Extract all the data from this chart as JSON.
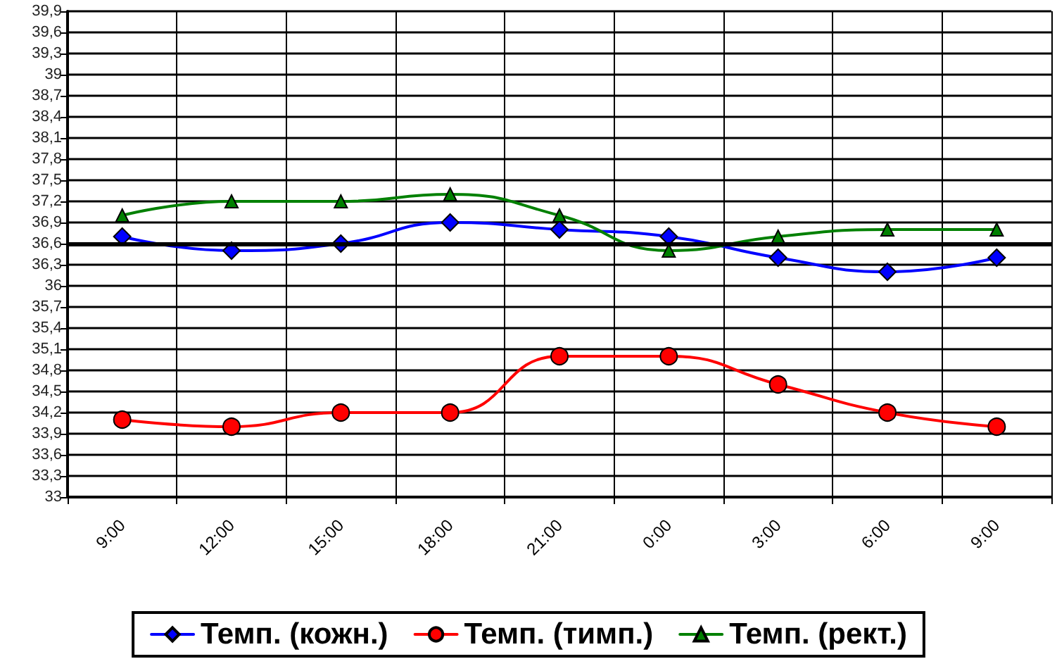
{
  "chart_data": {
    "type": "line",
    "categories": [
      "9:00",
      "12:00",
      "15:00",
      "18:00",
      "21:00",
      "0:00",
      "3:00",
      "6:00",
      "9:00"
    ],
    "series": [
      {
        "name": "Темп. (кожн.)",
        "color": "#0000ff",
        "marker": "diamond",
        "values": [
          36.7,
          36.5,
          36.6,
          36.9,
          36.8,
          36.7,
          36.4,
          36.2,
          36.4
        ]
      },
      {
        "name": "Темп. (тимп.)",
        "color": "#ff0000",
        "marker": "circle",
        "values": [
          34.1,
          34.0,
          34.2,
          34.2,
          35.0,
          35.0,
          34.6,
          34.2,
          34.0
        ]
      },
      {
        "name": "Темп. (рект.)",
        "color": "#008000",
        "marker": "triangle",
        "values": [
          37.0,
          37.2,
          37.2,
          37.3,
          37.0,
          36.5,
          36.7,
          36.8,
          36.8
        ]
      }
    ],
    "ylim": [
      33,
      39.9
    ],
    "yticks": [
      {
        "value": 33,
        "label": "33"
      },
      {
        "value": 33.3,
        "label": "33,3"
      },
      {
        "value": 33.6,
        "label": "33,6"
      },
      {
        "value": 33.9,
        "label": "33,9"
      },
      {
        "value": 34.2,
        "label": "34,2"
      },
      {
        "value": 34.5,
        "label": "34,5"
      },
      {
        "value": 34.8,
        "label": "34,8"
      },
      {
        "value": 35.1,
        "label": "35,1"
      },
      {
        "value": 35.4,
        "label": "35,4"
      },
      {
        "value": 35.7,
        "label": "35,7"
      },
      {
        "value": 36,
        "label": "36"
      },
      {
        "value": 36.3,
        "label": "36,3"
      },
      {
        "value": 36.6,
        "label": "36,6"
      },
      {
        "value": 36.9,
        "label": "36,9"
      },
      {
        "value": 37.2,
        "label": "37,2"
      },
      {
        "value": 37.5,
        "label": "37,5"
      },
      {
        "value": 37.8,
        "label": "37,8"
      },
      {
        "value": 38.1,
        "label": "38,1"
      },
      {
        "value": 38.4,
        "label": "38,4"
      },
      {
        "value": 38.7,
        "label": "38,7"
      },
      {
        "value": 39,
        "label": "39"
      },
      {
        "value": 39.3,
        "label": "39,3"
      },
      {
        "value": 39.6,
        "label": "39,6"
      },
      {
        "value": 39.9,
        "label": "39,9"
      }
    ],
    "ref_lines": [
      {
        "axis": "y",
        "value": 36.6,
        "color": "#000000"
      }
    ],
    "grid": true,
    "legend": "bottom"
  }
}
